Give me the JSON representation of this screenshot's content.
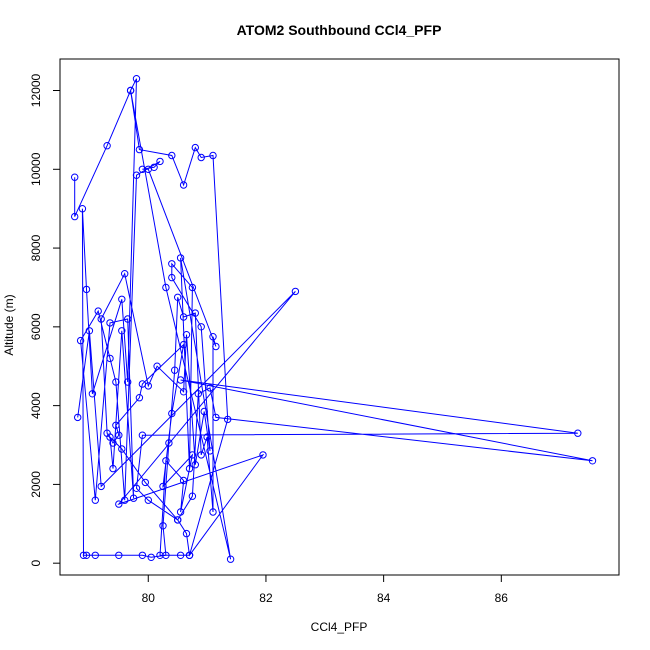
{
  "chart_data": {
    "type": "scatter",
    "title": "ATOM2 Southbound CCl4_PFP",
    "xlabel": "CCl4_PFP",
    "ylabel": "Altitude (m)",
    "xlim": [
      78.5,
      88.0
    ],
    "ylim": [
      -300,
      12800
    ],
    "xticks": [
      80,
      82,
      84,
      86
    ],
    "yticks": [
      0,
      2000,
      4000,
      6000,
      8000,
      10000,
      12000
    ],
    "grid": false,
    "legend": "none",
    "colors": {
      "series": "#0000ff",
      "axis": "#000000",
      "background": "#ffffff"
    },
    "marker": "open-circle",
    "connect_points": true,
    "series": [
      {
        "x": [
          78.75,
          78.75,
          79.3,
          79.7,
          79.85,
          80.4,
          80.6,
          80.8,
          80.9,
          81.1,
          81.35,
          80.7,
          80.55,
          80.7,
          80.2,
          80.3,
          80.6,
          80.55,
          80.75,
          80.25,
          80.4,
          80.6,
          79.9,
          79.85,
          79.45,
          79.5,
          79.4,
          79.3,
          79.2,
          79.6,
          80.0,
          80.15,
          80.6,
          80.65,
          80.8,
          80.95,
          81.05,
          80.9,
          80.4,
          80.4,
          80.75,
          80.7,
          80.55,
          81.4,
          80.3,
          79.7,
          79.8,
          79.65,
          79.55,
          79.05,
          78.95,
          78.88,
          78.9,
          78.95,
          79.1,
          79.5,
          79.9,
          80.05,
          80.3,
          80.25,
          80.35,
          80.45,
          80.5,
          80.6,
          80.8,
          80.9,
          81.0,
          81.1,
          81.1,
          81.15,
          80.0,
          79.9,
          80.1,
          80.2,
          79.8,
          79.6,
          79.45,
          79.35,
          79.15,
          78.85,
          79.1,
          79.35,
          79.65,
          79.75,
          79.55,
          79.4,
          79.35,
          79.55,
          79.95,
          80.5,
          80.75,
          80.85,
          81.05,
          81.15,
          87.55,
          80.55,
          87.3,
          79.9,
          79.8,
          80.0,
          80.5,
          80.65,
          80.7,
          81.95,
          79.5,
          82.5,
          79.2,
          79.0,
          78.8
        ],
        "y": [
          9800,
          8800,
          10600,
          12000,
          10500,
          10350,
          9600,
          10550,
          10300,
          10350,
          3650,
          200,
          200,
          200,
          200,
          2600,
          2100,
          1300,
          2750,
          1950,
          3800,
          5550,
          4550,
          4200,
          3500,
          3250,
          3050,
          3300,
          6200,
          7350,
          4500,
          5000,
          4350,
          5800,
          2500,
          3850,
          2850,
          6000,
          7250,
          7600,
          7000,
          2400,
          7750,
          100,
          7000,
          12000,
          12300,
          4600,
          6700,
          4300,
          6950,
          9000,
          200,
          200,
          200,
          200,
          200,
          150,
          200,
          950,
          3050,
          4900,
          6750,
          6250,
          6350,
          2750,
          3200,
          1300,
          5750,
          5500,
          10000,
          10000,
          10050,
          10200,
          9850,
          1600,
          4600,
          5200,
          6400,
          5650,
          1600,
          6100,
          6200,
          1650,
          5900,
          2400,
          3200,
          2900,
          2050,
          1100,
          1700,
          4300,
          4450,
          3700,
          2600,
          4650,
          3300,
          3250,
          1900,
          1600,
          1100,
          750,
          200,
          2750,
          1500,
          6900,
          1950,
          5900,
          3700
        ]
      }
    ]
  }
}
